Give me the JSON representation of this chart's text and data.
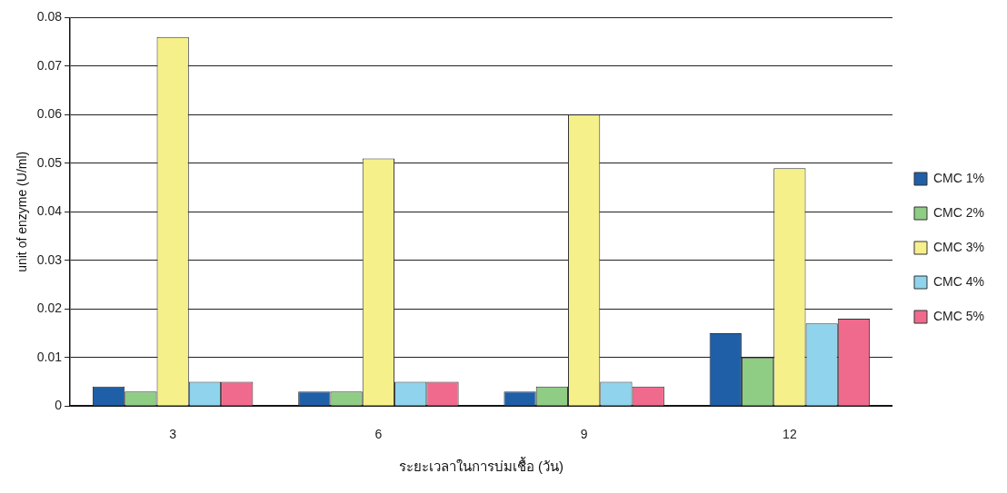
{
  "chart_data": {
    "type": "bar",
    "xlabel": "ระยะเวลาในการบ่มเชื้อ (วัน)",
    "ylabel": "unit of enzyme (U/ml)",
    "categories": [
      "3",
      "6",
      "9",
      "12"
    ],
    "series": [
      {
        "name": "CMC 1%",
        "color": "#1f5fa8",
        "values": [
          0.004,
          0.003,
          0.003,
          0.015
        ]
      },
      {
        "name": "CMC 2%",
        "color": "#8fcc84",
        "values": [
          0.003,
          0.003,
          0.004,
          0.01
        ]
      },
      {
        "name": "CMC 3%",
        "color": "#f5f08a",
        "values": [
          0.076,
          0.051,
          0.06,
          0.049
        ]
      },
      {
        "name": "CMC 4%",
        "color": "#8fd3ec",
        "values": [
          0.005,
          0.005,
          0.005,
          0.017
        ]
      },
      {
        "name": "CMC 5%",
        "color": "#f06a8e",
        "values": [
          0.005,
          0.005,
          0.004,
          0.018
        ]
      }
    ],
    "ylim": [
      0,
      0.08
    ],
    "yticks": [
      0,
      0.01,
      0.02,
      0.03,
      0.04,
      0.05,
      0.06,
      0.07,
      0.08
    ],
    "grid": "y",
    "legend": "right"
  }
}
